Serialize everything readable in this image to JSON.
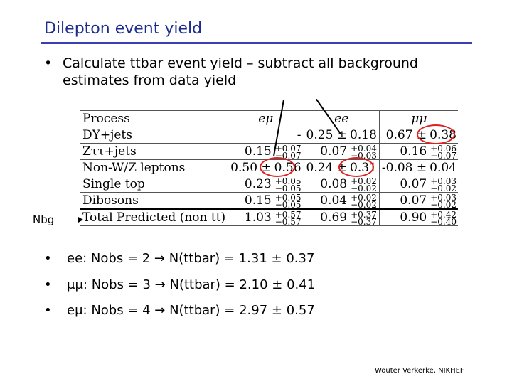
{
  "slide": {
    "title": "Dilepton event yield",
    "intro_bullet": "•",
    "intro": "Calculate ttbar event yield – subtract all background estimates from data yield",
    "nbg_label": "Nbg",
    "footer": "Wouter Verkerke, NIKHEF"
  },
  "table": {
    "header": {
      "process": "Process",
      "emu": "eμ",
      "ee": "ee",
      "mumu": "μμ"
    },
    "rows": [
      {
        "process": "DY+jets",
        "emu": {
          "v": "-",
          "c": "",
          "up": "",
          "dn": ""
        },
        "ee": {
          "c": "0.25 ±",
          "v": "0.18",
          "up": "",
          "dn": ""
        },
        "mumu": {
          "c": "0.67 ±",
          "v": "0.38",
          "up": "",
          "dn": ""
        }
      },
      {
        "process": "Zττ+jets",
        "emu": {
          "c": "0.15",
          "v": "",
          "up": "+0.07",
          "dn": "−0.07"
        },
        "ee": {
          "c": "0.07",
          "v": "",
          "up": "+0.04",
          "dn": "−0.03"
        },
        "mumu": {
          "c": "0.16",
          "v": "",
          "up": "+0.06",
          "dn": "−0.07"
        }
      },
      {
        "process": "Non-W/Z leptons",
        "emu": {
          "c": "0.50 ±",
          "v": "0.56",
          "up": "",
          "dn": ""
        },
        "ee": {
          "c": "0.24 ±",
          "v": "0.31",
          "up": "",
          "dn": ""
        },
        "mumu": {
          "c": "-0.08 ±",
          "v": "0.04",
          "up": "",
          "dn": ""
        }
      },
      {
        "process": "Single top",
        "emu": {
          "c": "0.23",
          "v": "",
          "up": "+0.05",
          "dn": "−0.05"
        },
        "ee": {
          "c": "0.08",
          "v": "",
          "up": "+0.02",
          "dn": "−0.02"
        },
        "mumu": {
          "c": "0.07",
          "v": "",
          "up": "+0.03",
          "dn": "−0.02"
        }
      },
      {
        "process": "Dibosons",
        "emu": {
          "c": "0.15",
          "v": "",
          "up": "+0.05",
          "dn": "−0.05"
        },
        "ee": {
          "c": "0.04",
          "v": "",
          "up": "+0.02",
          "dn": "−0.02"
        },
        "mumu": {
          "c": "0.07",
          "v": "",
          "up": "+0.03",
          "dn": "−0.02"
        }
      },
      {
        "process": "Total Predicted (non tt̄)",
        "emu": {
          "c": "1.03",
          "v": "",
          "up": "+0.57",
          "dn": "−0.57"
        },
        "ee": {
          "c": "0.69",
          "v": "",
          "up": "+0.37",
          "dn": "−0.37"
        },
        "mumu": {
          "c": "0.90",
          "v": "",
          "up": "+0.42",
          "dn": "−0.40"
        }
      }
    ]
  },
  "bullets": [
    {
      "dot": "•",
      "text": "ee: Nobs = 2 → N(ttbar) = 1.31 ± 0.37"
    },
    {
      "dot": "•",
      "text": "μμ: Nobs = 3 → N(ttbar) = 2.10 ± 0.41"
    },
    {
      "dot": "•",
      "text": "eμ: Nobs = 4 → N(ttbar) = 2.97 ± 0.57"
    }
  ],
  "colors": {
    "title": "#1c2c8c",
    "rule": "#3b3fb4",
    "highlight": "#e02020"
  }
}
